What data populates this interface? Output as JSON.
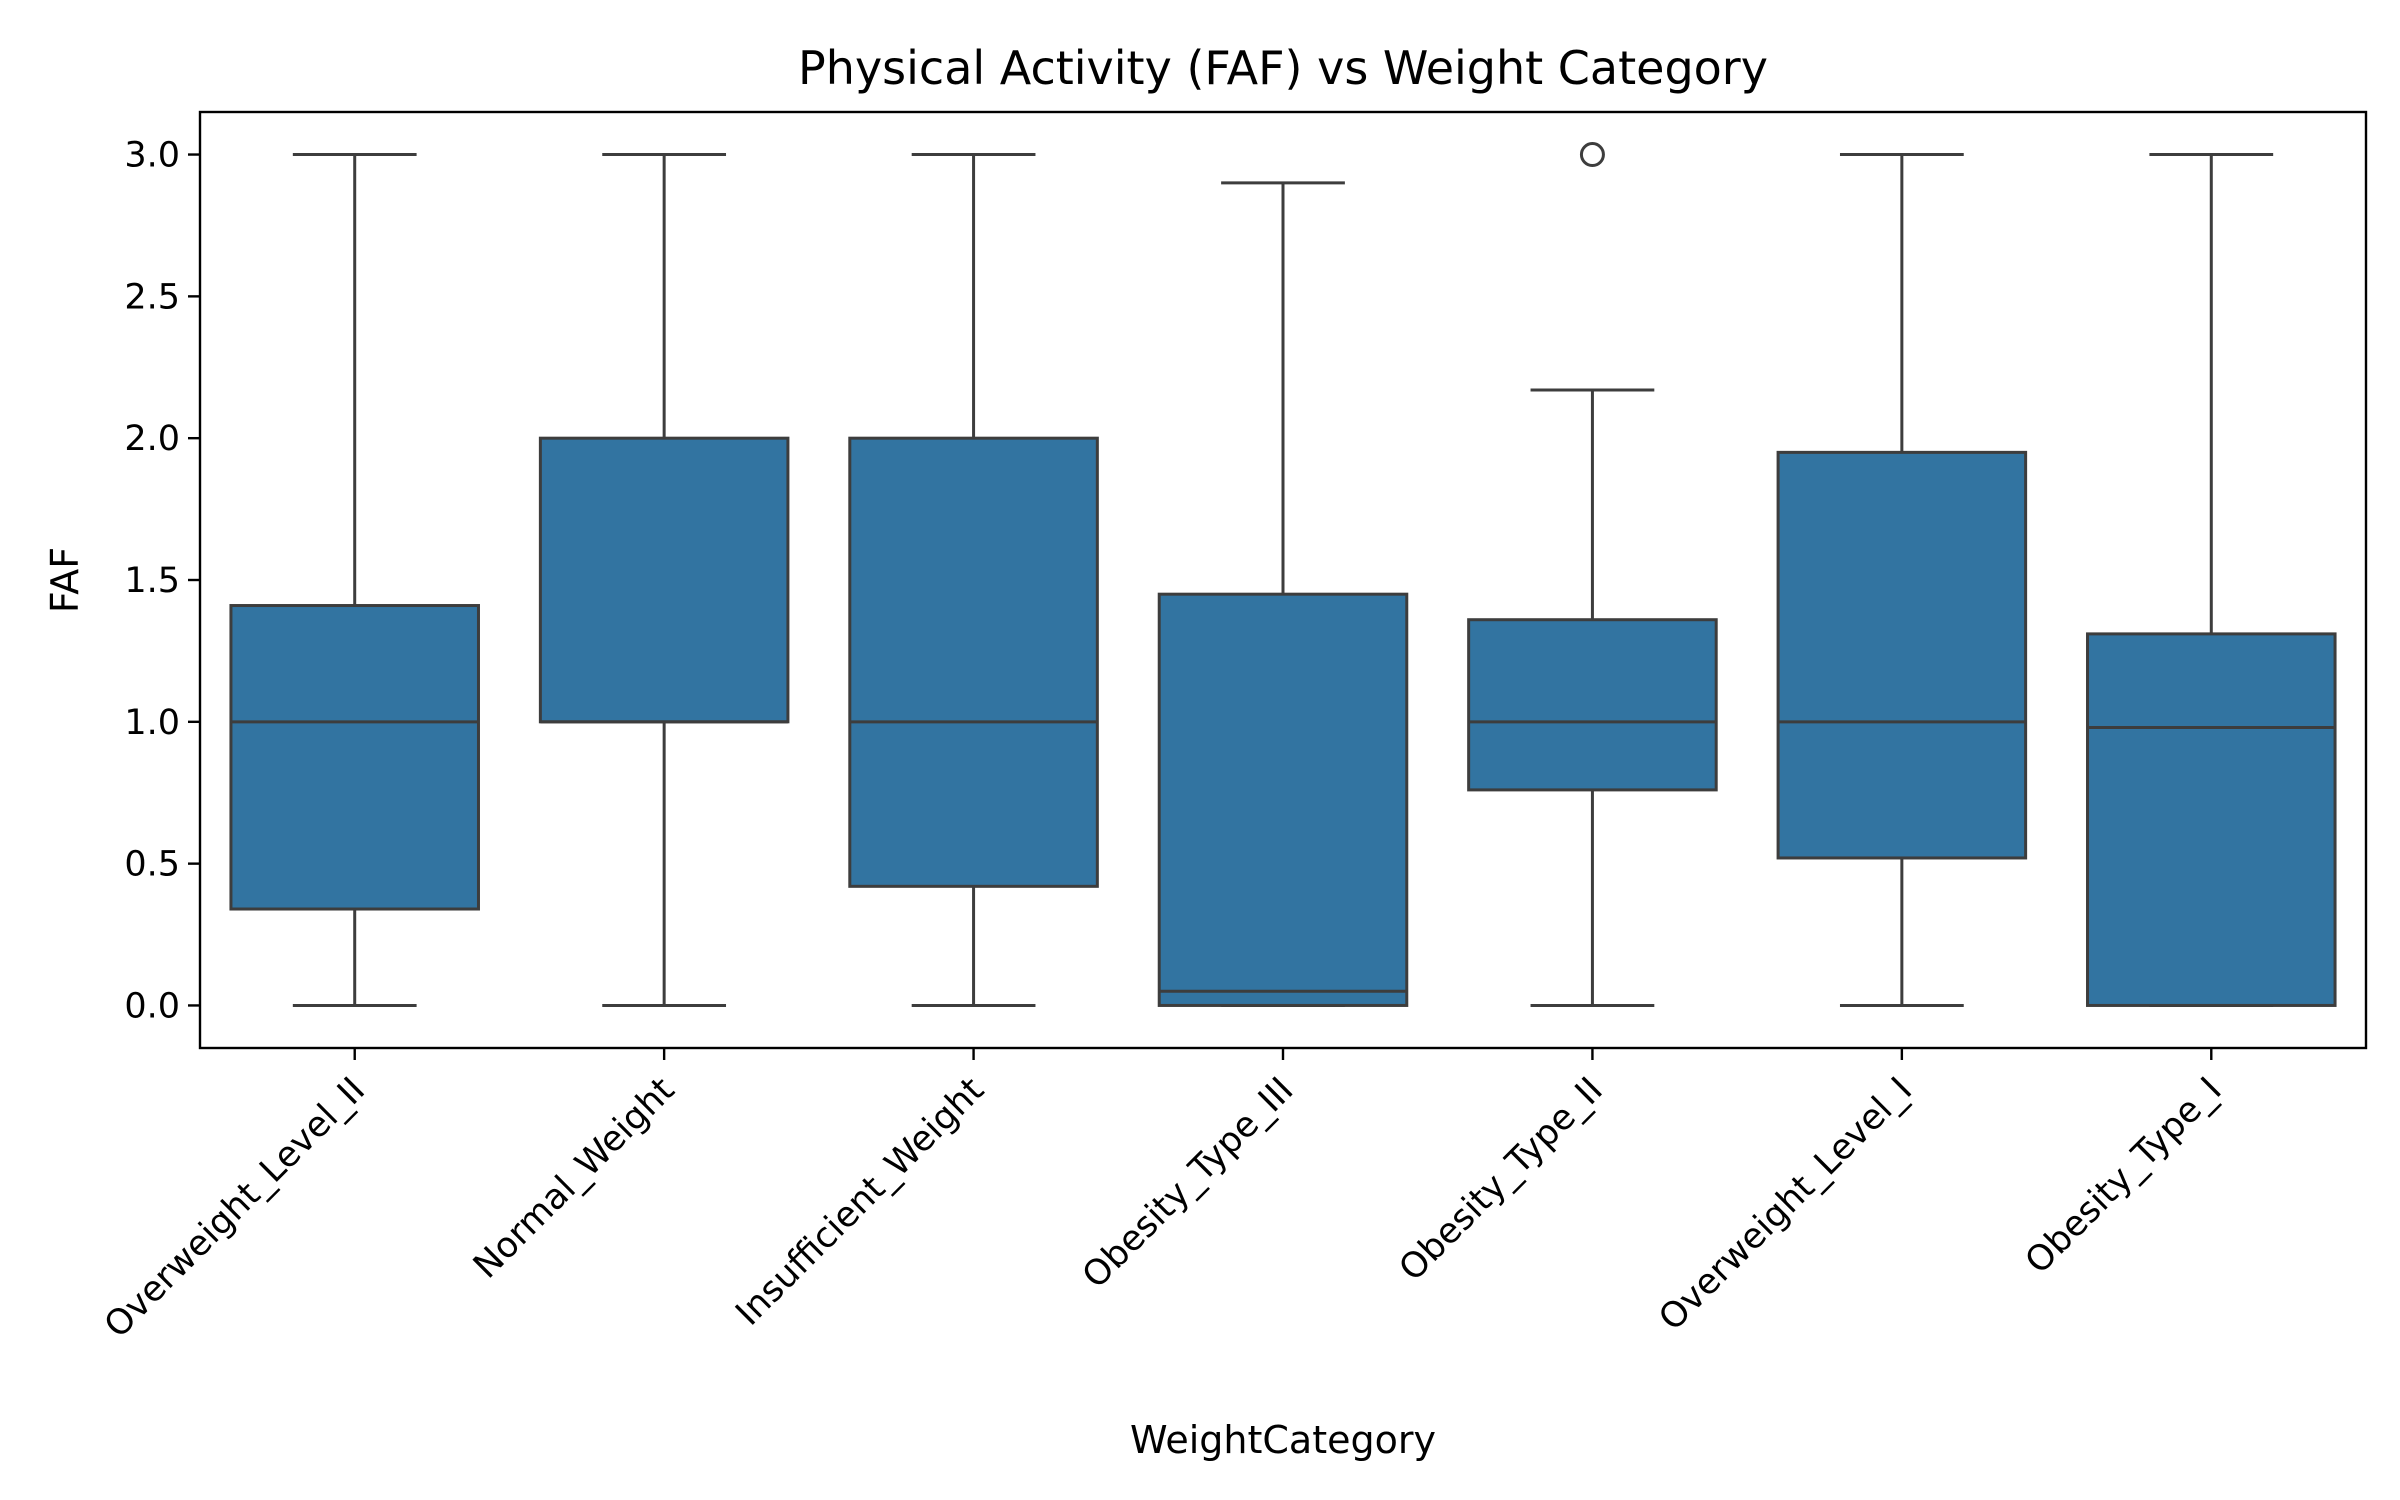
{
  "chart_data": {
    "type": "box",
    "title": "Physical Activity (FAF) vs Weight Category",
    "xlabel": "WeightCategory",
    "ylabel": "FAF",
    "ylim": [
      -0.15,
      3.15
    ],
    "yticks": [
      "0.0",
      "0.5",
      "1.0",
      "1.5",
      "2.0",
      "2.5",
      "3.0"
    ],
    "grid": false,
    "box_color": "#3274a1",
    "line_color": "#3d3d3d",
    "categories": [
      "Overweight_Level_II",
      "Normal_Weight",
      "Insufficient_Weight",
      "Obesity_Type_III",
      "Obesity_Type_II",
      "Overweight_Level_I",
      "Obesity_Type_I"
    ],
    "boxes": [
      {
        "category": "Overweight_Level_II",
        "whisker_low": 0.0,
        "q1": 0.34,
        "median": 1.0,
        "q3": 1.41,
        "whisker_high": 3.0,
        "outliers": []
      },
      {
        "category": "Normal_Weight",
        "whisker_low": 0.0,
        "q1": 1.0,
        "median": 1.0,
        "q3": 2.0,
        "whisker_high": 3.0,
        "outliers": []
      },
      {
        "category": "Insufficient_Weight",
        "whisker_low": 0.0,
        "q1": 0.42,
        "median": 1.0,
        "q3": 2.0,
        "whisker_high": 3.0,
        "outliers": []
      },
      {
        "category": "Obesity_Type_III",
        "whisker_low": 0.0,
        "q1": 0.0,
        "median": 0.05,
        "q3": 1.45,
        "whisker_high": 2.9,
        "outliers": []
      },
      {
        "category": "Obesity_Type_II",
        "whisker_low": 0.0,
        "q1": 0.76,
        "median": 1.0,
        "q3": 1.36,
        "whisker_high": 2.17,
        "outliers": [
          3.0
        ]
      },
      {
        "category": "Overweight_Level_I",
        "whisker_low": 0.0,
        "q1": 0.52,
        "median": 1.0,
        "q3": 1.95,
        "whisker_high": 3.0,
        "outliers": []
      },
      {
        "category": "Obesity_Type_I",
        "whisker_low": 0.0,
        "q1": 0.0,
        "median": 0.98,
        "q3": 1.31,
        "whisker_high": 3.0,
        "outliers": []
      }
    ]
  }
}
